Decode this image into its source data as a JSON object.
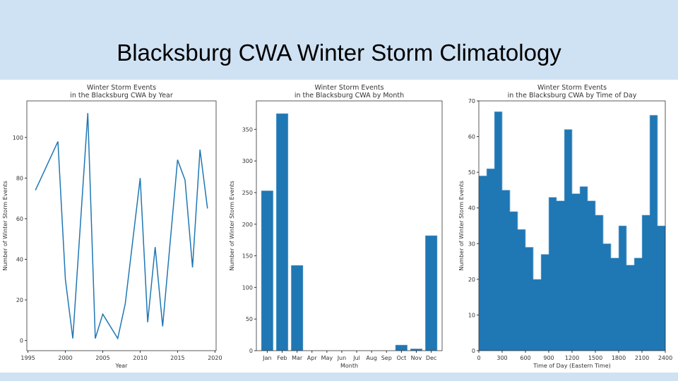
{
  "slide": {
    "title": "Blacksburg CWA Winter Storm Climatology"
  },
  "colors": {
    "band": "#cfe2f3",
    "series": "#1f77b4"
  },
  "chart_data": [
    {
      "type": "line",
      "title": "Winter Storm Events\nin the Blacksburg CWA by Year",
      "xlabel": "Year",
      "ylabel": "Number of Winter Storm Events",
      "xlim": [
        1994.85,
        2020.15
      ],
      "ylim": [
        -5,
        118
      ],
      "xticks": [
        1995,
        2000,
        2005,
        2010,
        2015,
        2020
      ],
      "yticks": [
        0,
        20,
        40,
        60,
        80,
        100
      ],
      "x": [
        1996,
        1999,
        2000,
        2001,
        2003,
        2004,
        2005,
        2007,
        2008,
        2010,
        2011,
        2012,
        2013,
        2015,
        2016,
        2017,
        2018,
        2019
      ],
      "values": [
        74,
        98,
        30,
        1,
        112,
        1,
        13,
        1,
        18,
        80,
        9,
        46,
        7,
        89,
        79,
        36,
        94,
        65
      ]
    },
    {
      "type": "bar",
      "title": "Winter Storm Events\nin the Blacksburg CWA by Month",
      "xlabel": "Month",
      "ylabel": "Number of Winter Storm Events",
      "ylim": [
        0,
        395
      ],
      "yticks": [
        0,
        50,
        100,
        150,
        200,
        250,
        300,
        350
      ],
      "categories": [
        "Jan",
        "Feb",
        "Mar",
        "Apr",
        "May",
        "Jun",
        "Jul",
        "Aug",
        "Sep",
        "Oct",
        "Nov",
        "Dec"
      ],
      "values": [
        253,
        375,
        135,
        0,
        0,
        0,
        0,
        0,
        0,
        9,
        3,
        182
      ]
    },
    {
      "type": "bar",
      "title": "Winter Storm Events\nin the Blacksburg CWA by Time of Day",
      "xlabel": "Time of Day (Eastern Time)",
      "ylabel": "Number of Winter Storm Events",
      "xlim": [
        0,
        2400
      ],
      "ylim": [
        0,
        70
      ],
      "xticks": [
        0,
        300,
        600,
        900,
        1200,
        1500,
        1800,
        2100,
        2400
      ],
      "yticks": [
        0,
        10,
        20,
        30,
        40,
        50,
        60,
        70
      ],
      "bin_width": 100,
      "values": [
        49,
        51,
        67,
        45,
        39,
        34,
        29,
        20,
        27,
        43,
        42,
        62,
        44,
        46,
        42,
        38,
        30,
        26,
        35,
        24,
        26,
        38,
        66,
        35
      ]
    }
  ]
}
